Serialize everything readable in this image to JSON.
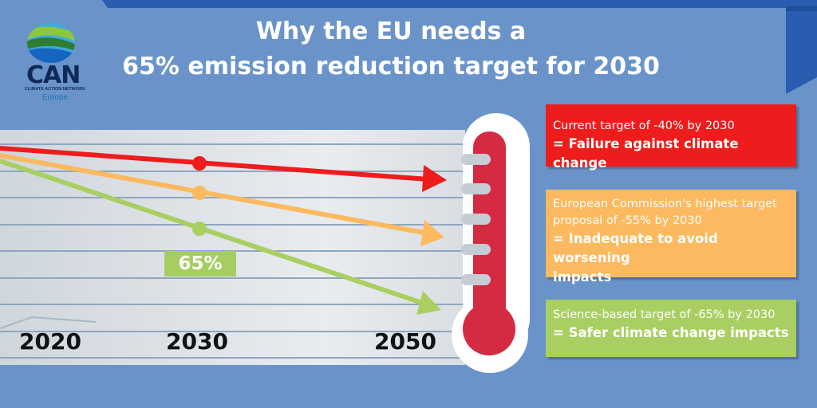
{
  "title": {
    "line1": "Why the EU needs a",
    "line2": "65% emission reduction target for 2030"
  },
  "logo": {
    "name": "CAN",
    "subtitle": "CLIMATE ACTION NETWORK",
    "region": "Europe"
  },
  "chart": {
    "years": [
      "2020",
      "2030",
      "2050"
    ],
    "highlight_label": "65%"
  },
  "targets": [
    {
      "line1": "Current target of -40% by 2030",
      "line2": "= Failure against climate change",
      "color": "#ee1c1c"
    },
    {
      "line1": "European Commission's highest target",
      "line1b": "proposal of -55% by 2030",
      "line2": "= Inadequate to avoid worsening",
      "line2b": "impacts",
      "color": "#fcb95f"
    },
    {
      "line1": "Science-based target of -65% by 2030",
      "line2": "= Safer climate change impacts",
      "color": "#a9cf63"
    }
  ],
  "colors": {
    "background": "#6a94c9",
    "dark_band": "#2a5db0",
    "thermometer_red": "#d42a42",
    "panel": "#d7dde3"
  }
}
